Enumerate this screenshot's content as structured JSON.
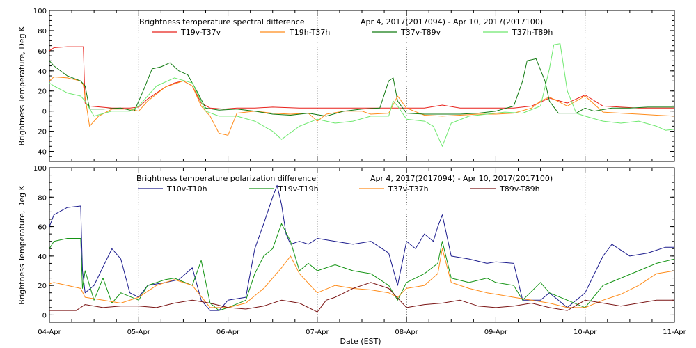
{
  "chart_data": [
    {
      "type": "line",
      "title": "Brightness temperature spectral difference",
      "date_range": "Apr  4, 2017(2017094) - Apr 10, 2017(2017100)",
      "ylabel": "Brightness Temperature, Deg K",
      "xlabel": "",
      "xlim": [
        0,
        7
      ],
      "ylim": [
        -50,
        100
      ],
      "yticks": [
        -40,
        -20,
        0,
        20,
        40,
        60,
        80,
        100
      ],
      "grid": "dotted vertical at day boundaries",
      "legend": "top, horizontal",
      "series": [
        {
          "name": "T19v-T37v",
          "color": "#e8201a",
          "x": [
            0,
            0.05,
            0.2,
            0.38,
            0.4,
            0.45,
            0.7,
            0.9,
            1.0,
            1.1,
            1.2,
            1.3,
            1.4,
            1.5,
            1.6,
            1.7,
            1.8,
            1.95,
            2.1,
            2.3,
            2.5,
            2.8,
            3.0,
            3.2,
            3.4,
            3.6,
            3.8,
            4.0,
            4.2,
            4.4,
            4.6,
            4.8,
            5.0,
            5.2,
            5.4,
            5.6,
            5.8,
            6.0,
            6.2,
            6.4,
            6.6,
            6.8,
            7.0
          ],
          "y": [
            60,
            63,
            64,
            64,
            8,
            5,
            3,
            3,
            4,
            12,
            18,
            24,
            28,
            30,
            25,
            8,
            3,
            2,
            3,
            3,
            4,
            3,
            3,
            3,
            3,
            3,
            3,
            3,
            3,
            6,
            3,
            3,
            3,
            3,
            5,
            13,
            8,
            16,
            5,
            4,
            3,
            3,
            3
          ]
        },
        {
          "name": "T19h-T37h",
          "color": "#ff8c1a",
          "x": [
            0,
            0.05,
            0.2,
            0.35,
            0.38,
            0.45,
            0.55,
            0.7,
            0.9,
            1.0,
            1.1,
            1.3,
            1.5,
            1.6,
            1.7,
            1.8,
            1.9,
            2.0,
            2.1,
            2.3,
            2.5,
            2.7,
            2.9,
            3.0,
            3.1,
            3.3,
            3.5,
            3.6,
            3.8,
            3.9,
            4.0,
            4.2,
            4.4,
            4.6,
            4.8,
            5.0,
            5.2,
            5.4,
            5.5,
            5.6,
            5.8,
            6.0,
            6.2,
            6.4,
            6.6,
            6.8,
            7.0
          ],
          "y": [
            30,
            34,
            33,
            30,
            26,
            -15,
            -5,
            2,
            2,
            0,
            10,
            24,
            30,
            25,
            5,
            -5,
            -22,
            -24,
            -2,
            0,
            -2,
            -3,
            -2,
            -10,
            -3,
            0,
            0,
            -3,
            -2,
            15,
            3,
            -4,
            -5,
            -4,
            -3,
            -3,
            -2,
            3,
            10,
            14,
            5,
            15,
            -1,
            -2,
            -3,
            -4,
            -5
          ]
        },
        {
          "name": "T37v-T89v",
          "color": "#117a11",
          "x": [
            0,
            0.05,
            0.2,
            0.35,
            0.4,
            0.45,
            0.6,
            0.8,
            0.95,
            1.05,
            1.15,
            1.25,
            1.35,
            1.45,
            1.55,
            1.65,
            1.75,
            1.9,
            2.1,
            2.3,
            2.5,
            2.7,
            2.9,
            3.1,
            3.3,
            3.5,
            3.7,
            3.8,
            3.85,
            3.9,
            4.0,
            4.2,
            4.4,
            4.6,
            4.8,
            5.0,
            5.2,
            5.3,
            5.35,
            5.45,
            5.55,
            5.6,
            5.7,
            5.9,
            6.0,
            6.1,
            6.3,
            6.5,
            6.7,
            6.9,
            7.0
          ],
          "y": [
            50,
            45,
            35,
            30,
            25,
            2,
            2,
            3,
            0,
            20,
            42,
            44,
            48,
            40,
            36,
            20,
            3,
            1,
            2,
            0,
            -3,
            -4,
            -2,
            -5,
            0,
            2,
            3,
            30,
            33,
            10,
            -2,
            -3,
            -3,
            -3,
            -2,
            0,
            5,
            30,
            50,
            52,
            30,
            10,
            -2,
            -2,
            3,
            0,
            3,
            3,
            4,
            4,
            4
          ]
        },
        {
          "name": "T37h-T89h",
          "color": "#6ee86e",
          "x": [
            0,
            0.05,
            0.2,
            0.35,
            0.4,
            0.5,
            0.7,
            0.9,
            1.0,
            1.2,
            1.4,
            1.6,
            1.75,
            1.9,
            2.1,
            2.3,
            2.5,
            2.6,
            2.8,
            3.0,
            3.2,
            3.4,
            3.6,
            3.8,
            3.85,
            3.9,
            4.0,
            4.2,
            4.3,
            4.35,
            4.4,
            4.5,
            4.7,
            4.9,
            5.1,
            5.3,
            5.5,
            5.6,
            5.65,
            5.72,
            5.8,
            5.9,
            6.0,
            6.2,
            6.4,
            6.6,
            6.8,
            6.9,
            7.0
          ],
          "y": [
            28,
            25,
            18,
            15,
            10,
            -5,
            0,
            0,
            5,
            25,
            33,
            28,
            0,
            -5,
            -5,
            -10,
            -20,
            -28,
            -15,
            -8,
            -12,
            -10,
            -5,
            -5,
            10,
            5,
            -8,
            -10,
            -15,
            -25,
            -35,
            -12,
            -5,
            -3,
            -1,
            -2,
            5,
            42,
            66,
            67,
            20,
            -2,
            -5,
            -10,
            -12,
            -10,
            -15,
            -19,
            -18
          ]
        }
      ]
    },
    {
      "type": "line",
      "title": "Brightness temperature polarization difference",
      "date_range": "Apr  4, 2017(2017094) - Apr 10, 2017(2017100)",
      "ylabel": "Brightness Temperature, Deg K",
      "xlabel": "Date (EST)",
      "xlim": [
        0,
        7
      ],
      "ylim": [
        -5,
        100
      ],
      "yticks": [
        0,
        20,
        40,
        60,
        80,
        100
      ],
      "xticklabels": [
        "04-Apr",
        "05-Apr",
        "06-Apr",
        "07-Apr",
        "08-Apr",
        "09-Apr",
        "10-Apr",
        "11-Apr"
      ],
      "grid": "dotted vertical at day boundaries",
      "legend": "top, horizontal",
      "series": [
        {
          "name": "T10v-T10h",
          "color": "#1a1a8c",
          "x": [
            0,
            0.05,
            0.2,
            0.35,
            0.37,
            0.4,
            0.5,
            0.7,
            0.8,
            0.9,
            1.0,
            1.1,
            1.3,
            1.45,
            1.6,
            1.7,
            1.8,
            1.9,
            2.0,
            2.2,
            2.3,
            2.4,
            2.5,
            2.55,
            2.6,
            2.65,
            2.7,
            2.8,
            2.9,
            3.0,
            3.2,
            3.4,
            3.6,
            3.8,
            3.9,
            4.0,
            4.1,
            4.2,
            4.3,
            4.35,
            4.4,
            4.5,
            4.7,
            4.9,
            5.0,
            5.2,
            5.3,
            5.5,
            5.6,
            5.8,
            6.0,
            6.2,
            6.3,
            6.5,
            6.7,
            6.9,
            7.0
          ],
          "y": [
            60,
            68,
            73,
            74,
            30,
            15,
            20,
            45,
            38,
            15,
            12,
            20,
            22,
            24,
            32,
            10,
            3,
            3,
            10,
            12,
            45,
            62,
            80,
            88,
            75,
            55,
            48,
            50,
            48,
            52,
            50,
            48,
            50,
            42,
            20,
            50,
            45,
            55,
            50,
            60,
            68,
            40,
            38,
            35,
            36,
            35,
            10,
            10,
            15,
            5,
            15,
            40,
            48,
            40,
            42,
            46,
            46
          ]
        },
        {
          "name": "T19v-T19h",
          "color": "#149414",
          "x": [
            0,
            0.05,
            0.2,
            0.35,
            0.37,
            0.4,
            0.5,
            0.6,
            0.7,
            0.8,
            1.0,
            1.1,
            1.3,
            1.4,
            1.6,
            1.7,
            1.8,
            1.9,
            2.0,
            2.2,
            2.3,
            2.4,
            2.5,
            2.6,
            2.7,
            2.8,
            2.9,
            3.0,
            3.2,
            3.4,
            3.6,
            3.8,
            3.9,
            4.0,
            4.2,
            4.35,
            4.4,
            4.5,
            4.7,
            4.9,
            5.0,
            5.2,
            5.3,
            5.5,
            5.6,
            5.8,
            6.0,
            6.2,
            6.4,
            6.6,
            6.8,
            7.0
          ],
          "y": [
            45,
            50,
            52,
            52,
            18,
            30,
            10,
            25,
            8,
            15,
            10,
            20,
            24,
            25,
            20,
            37,
            8,
            3,
            5,
            10,
            28,
            40,
            45,
            62,
            50,
            30,
            35,
            30,
            34,
            30,
            28,
            20,
            10,
            22,
            28,
            35,
            50,
            25,
            22,
            25,
            22,
            20,
            10,
            22,
            15,
            10,
            5,
            20,
            25,
            30,
            35,
            38
          ]
        },
        {
          "name": "T37v-T37h",
          "color": "#ff8c1a",
          "x": [
            0,
            0.05,
            0.2,
            0.35,
            0.4,
            0.6,
            0.8,
            1.0,
            1.2,
            1.4,
            1.6,
            1.8,
            2.0,
            2.2,
            2.4,
            2.5,
            2.6,
            2.7,
            2.8,
            3.0,
            3.2,
            3.4,
            3.6,
            3.8,
            3.9,
            4.0,
            4.2,
            4.35,
            4.4,
            4.5,
            4.7,
            4.9,
            5.0,
            5.2,
            5.4,
            5.6,
            5.8,
            6.0,
            6.2,
            6.4,
            6.6,
            6.8,
            7.0
          ],
          "y": [
            21,
            22,
            20,
            18,
            12,
            10,
            8,
            12,
            20,
            24,
            20,
            5,
            5,
            8,
            18,
            25,
            32,
            40,
            28,
            15,
            20,
            18,
            17,
            15,
            12,
            18,
            20,
            28,
            45,
            22,
            18,
            15,
            14,
            12,
            10,
            8,
            5,
            5,
            10,
            14,
            20,
            28,
            30
          ]
        },
        {
          "name": "T89v-T89h",
          "color": "#7a1414",
          "x": [
            0,
            0.1,
            0.3,
            0.4,
            0.6,
            0.8,
            1.0,
            1.2,
            1.4,
            1.6,
            1.8,
            2.0,
            2.2,
            2.4,
            2.6,
            2.8,
            3.0,
            3.1,
            3.2,
            3.4,
            3.6,
            3.8,
            4.0,
            4.2,
            4.4,
            4.6,
            4.8,
            5.0,
            5.2,
            5.4,
            5.6,
            5.8,
            6.0,
            6.2,
            6.4,
            6.6,
            6.8,
            7.0
          ],
          "y": [
            3,
            3,
            3,
            7,
            5,
            6,
            6,
            5,
            8,
            10,
            8,
            5,
            4,
            6,
            10,
            8,
            2,
            10,
            12,
            18,
            22,
            18,
            5,
            7,
            8,
            10,
            6,
            5,
            6,
            8,
            5,
            3,
            10,
            8,
            6,
            8,
            10,
            10
          ]
        }
      ]
    }
  ]
}
